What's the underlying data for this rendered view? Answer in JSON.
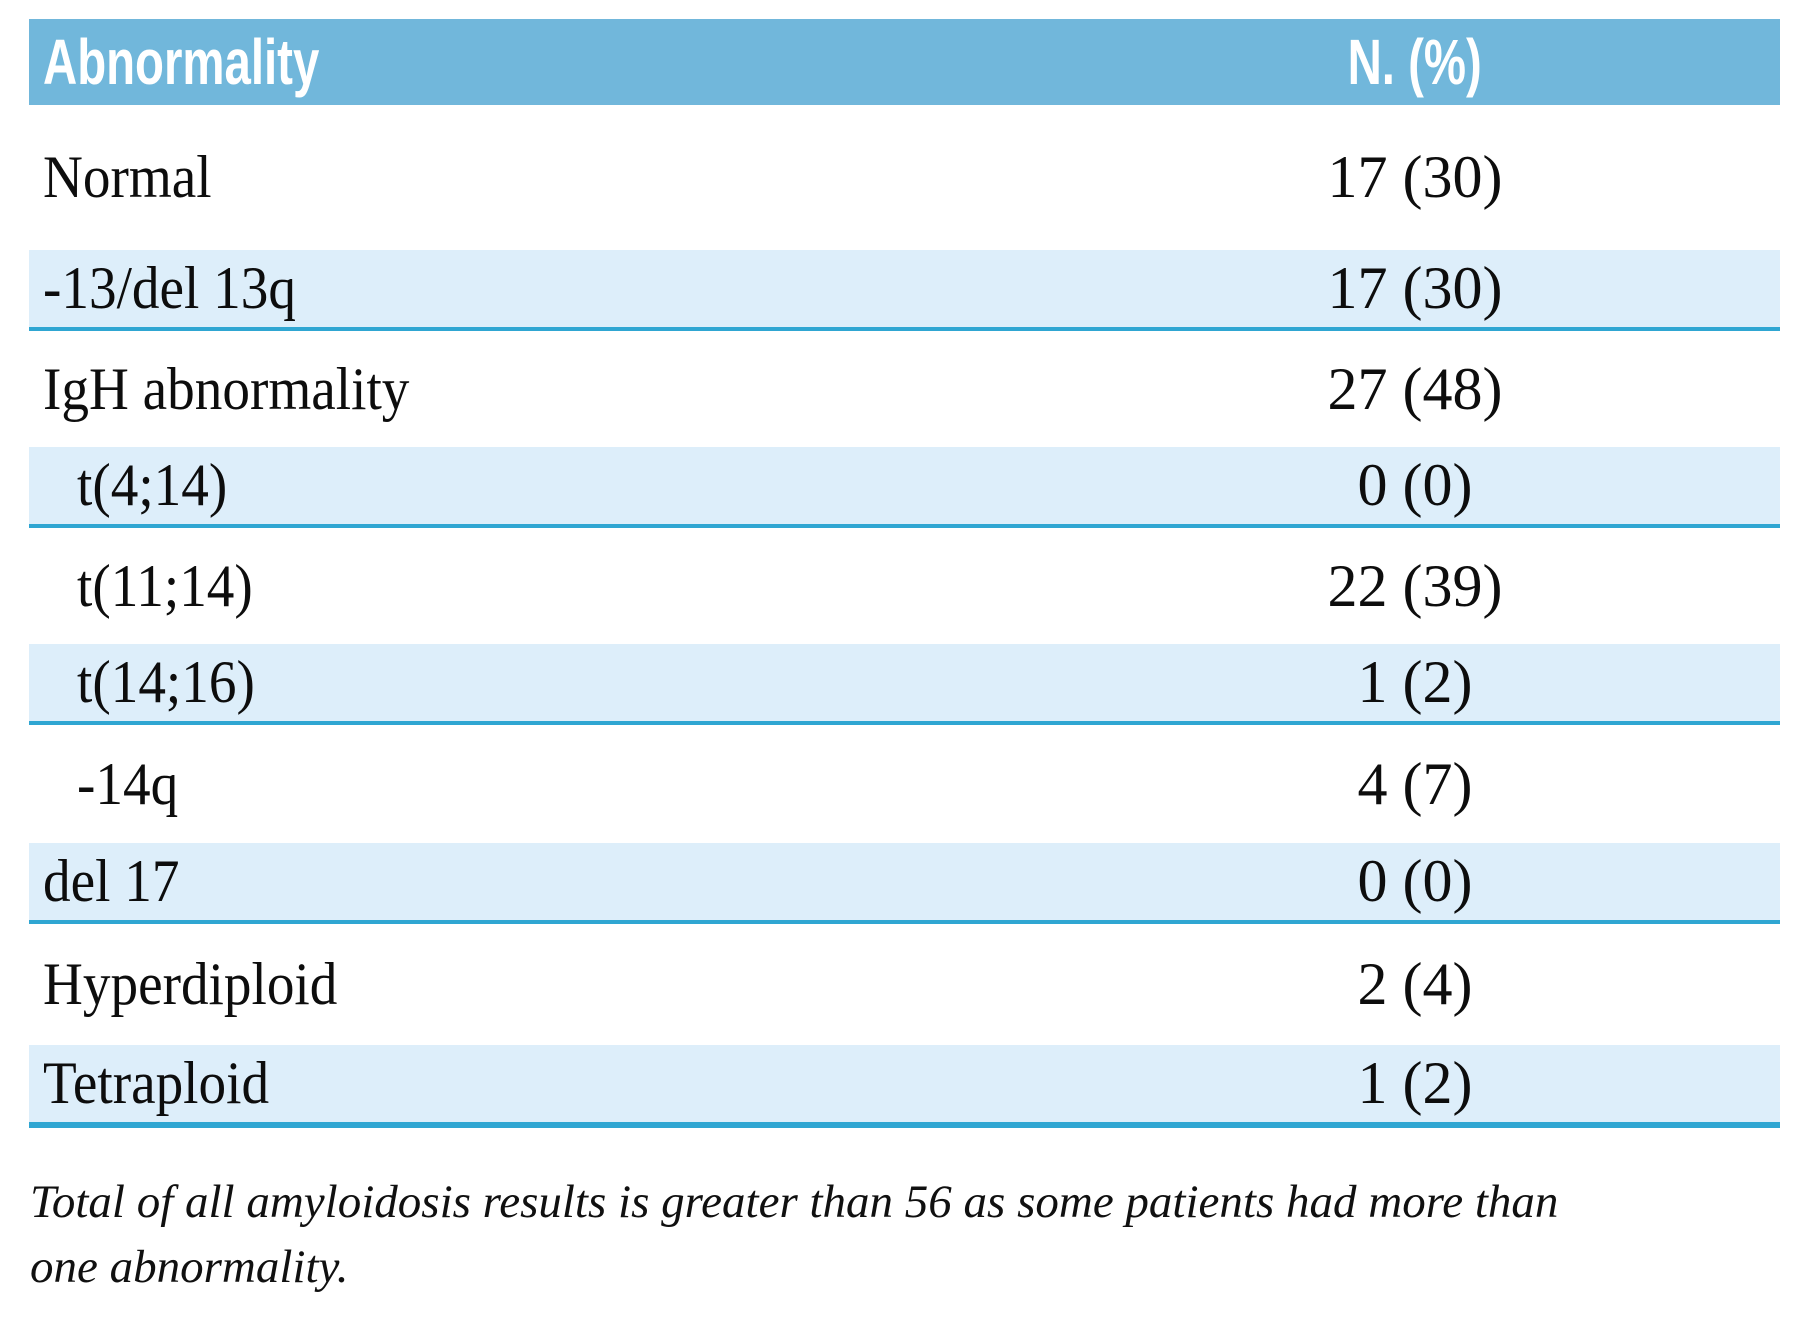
{
  "table": {
    "header": {
      "abnormality_label": "Abnormality",
      "n_pct_label": "N. (%)"
    },
    "rows": [
      {
        "label": "Normal",
        "value": "17 (30)",
        "indent": false
      },
      {
        "label": "-13/del 13q",
        "value": "17 (30)",
        "indent": false
      },
      {
        "label": "IgH abnormality",
        "value": "27 (48)",
        "indent": false
      },
      {
        "label": "t(4;14)",
        "value": "0 (0)",
        "indent": true
      },
      {
        "label": "t(11;14)",
        "value": "22 (39)",
        "indent": true
      },
      {
        "label": "t(14;16)",
        "value": "1 (2)",
        "indent": true
      },
      {
        "label": "-14q",
        "value": "4 (7)",
        "indent": true
      },
      {
        "label": "del 17",
        "value": "0 (0)",
        "indent": false
      },
      {
        "label": "Hyperdiploid",
        "value": "2 (4)",
        "indent": false
      },
      {
        "label": "Tetraploid",
        "value": "1 (2)",
        "indent": false
      }
    ]
  },
  "footnote": {
    "lines": [
      "Total of all amyloidosis results is greater than 56 as some patients had more than",
      "one abnormality."
    ]
  },
  "colors": {
    "header_bg": "#71b7db",
    "stripe_bg": "#ddeefa",
    "separator": "#2fa6d2",
    "header_text": "#ffffff",
    "body_text": "#0d0d0d"
  }
}
